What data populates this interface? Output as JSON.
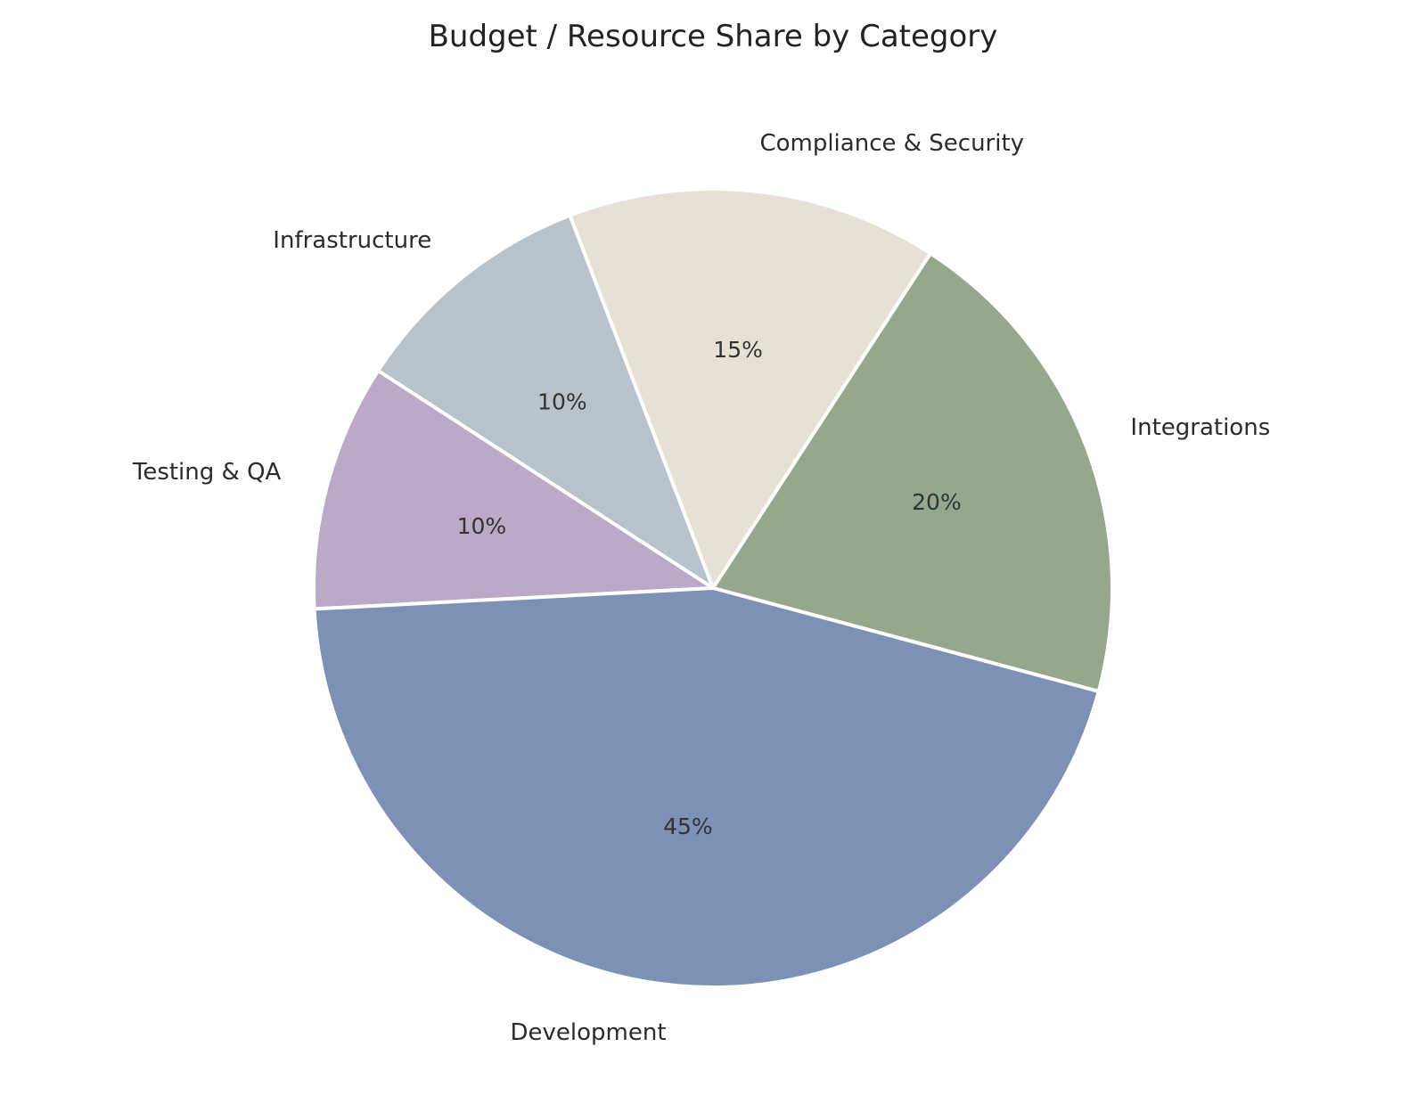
{
  "chart_data": {
    "type": "pie",
    "title": "Budget / Resource Share by Category",
    "slices": [
      {
        "label": "Integrations",
        "value": 20,
        "value_label": "20%",
        "color": "#95a78d"
      },
      {
        "label": "Compliance & Security",
        "value": 15,
        "value_label": "15%",
        "color": "#e6e1d4"
      },
      {
        "label": "Infrastructure",
        "value": 10,
        "value_label": "10%",
        "color": "#b8c2ca"
      },
      {
        "label": "Testing & QA",
        "value": 10,
        "value_label": "10%",
        "color": "#bba9c7"
      },
      {
        "label": "Development",
        "value": 45,
        "value_label": "45%",
        "color": "#7d91b6"
      }
    ],
    "start_angle_deg": -15,
    "direction": "counterclockwise",
    "legend": "none"
  }
}
